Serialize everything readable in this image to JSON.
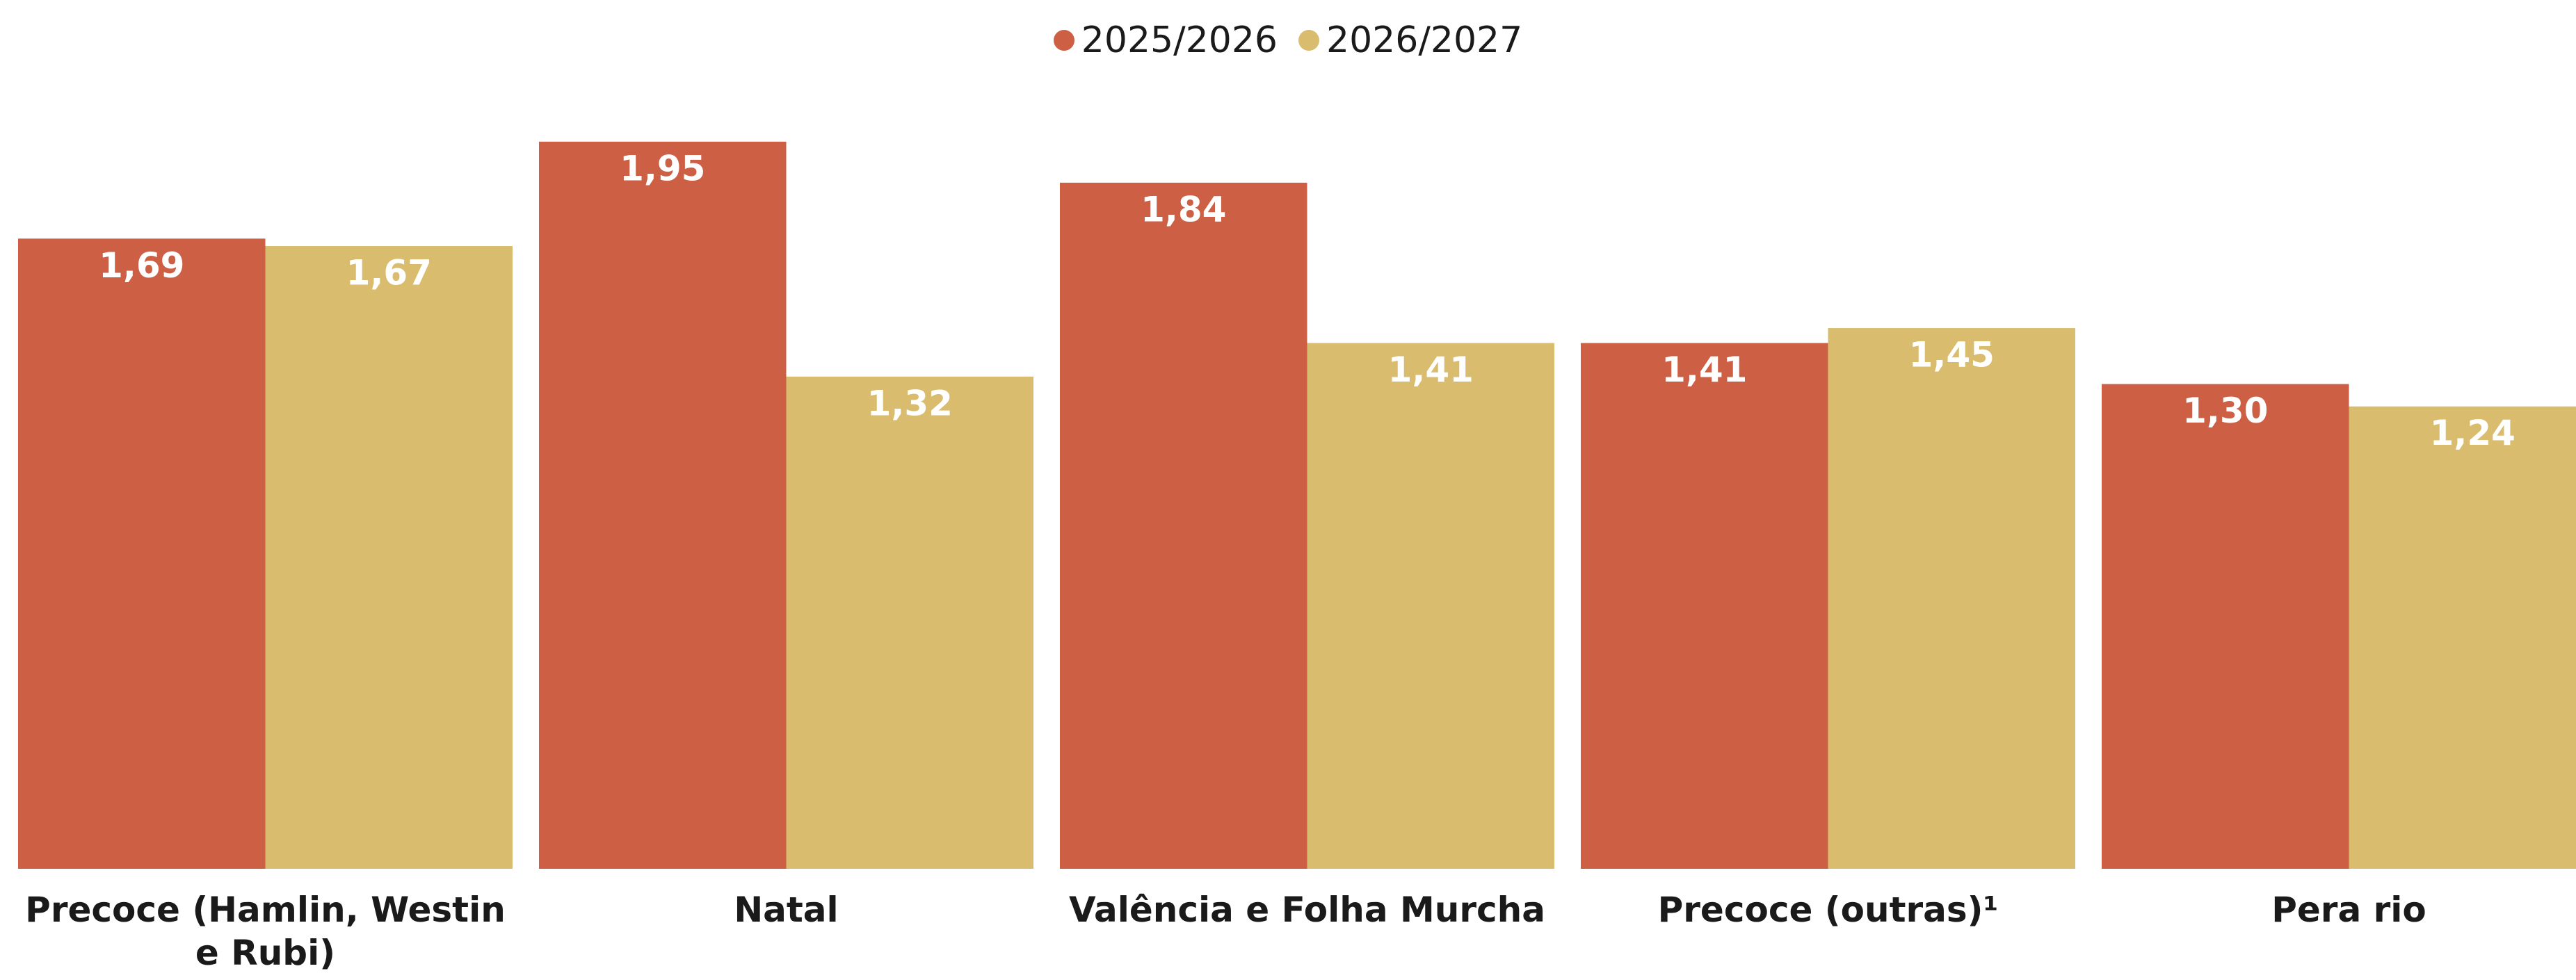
{
  "chart_data": {
    "type": "bar",
    "categories": [
      "Precoce (Hamlin, Westin e Rubi)",
      "Natal",
      "Valência e Folha Murcha",
      "Precoce (outras)¹",
      "Pera rio"
    ],
    "series": [
      {
        "name": "2025/2026",
        "color": "#cc5f44",
        "values": [
          1.69,
          1.95,
          1.84,
          1.41,
          1.3
        ],
        "value_labels": [
          "1,69",
          "1,95",
          "1,84",
          "1,41",
          "1,30"
        ]
      },
      {
        "name": "2026/2027",
        "color": "#d9bc6e",
        "values": [
          1.67,
          1.32,
          1.41,
          1.45,
          1.24
        ],
        "value_labels": [
          "1,67",
          "1,32",
          "1,41",
          "1,45",
          "1,24"
        ]
      }
    ],
    "ylim": [
      0,
      2
    ],
    "legend": "top"
  }
}
